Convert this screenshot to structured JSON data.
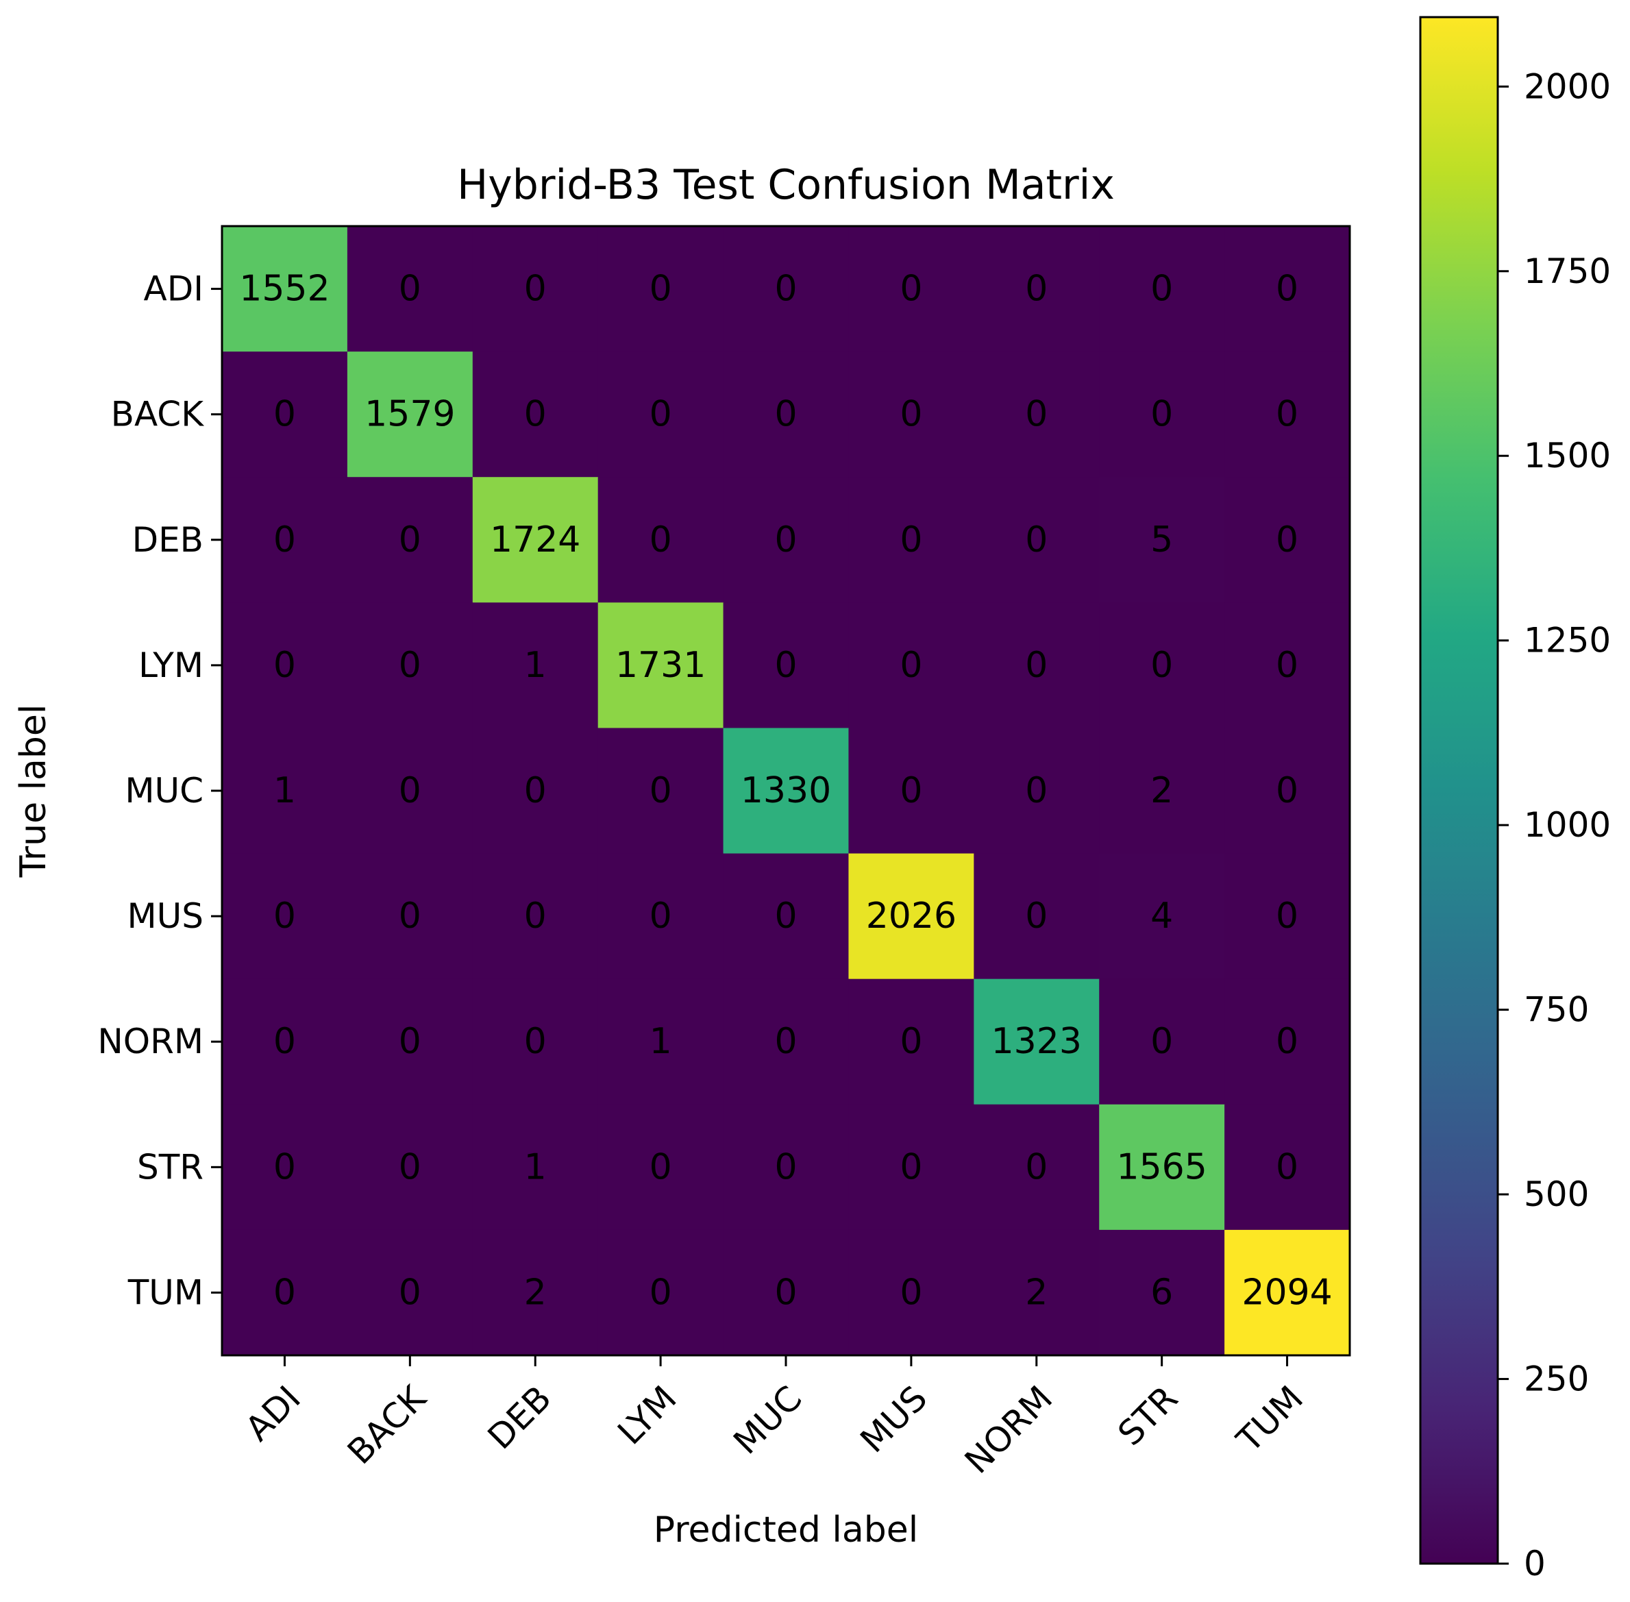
{
  "chart_data": {
    "type": "heatmap",
    "title": "Hybrid-B3 Test Confusion Matrix",
    "xlabel": "Predicted label",
    "ylabel": "True label",
    "x_categories": [
      "ADI",
      "BACK",
      "DEB",
      "LYM",
      "MUC",
      "MUS",
      "NORM",
      "STR",
      "TUM"
    ],
    "y_categories": [
      "ADI",
      "BACK",
      "DEB",
      "LYM",
      "MUC",
      "MUS",
      "NORM",
      "STR",
      "TUM"
    ],
    "values": [
      [
        1552,
        0,
        0,
        0,
        0,
        0,
        0,
        0,
        0
      ],
      [
        0,
        1579,
        0,
        0,
        0,
        0,
        0,
        0,
        0
      ],
      [
        0,
        0,
        1724,
        0,
        0,
        0,
        0,
        5,
        0
      ],
      [
        0,
        0,
        1,
        1731,
        0,
        0,
        0,
        0,
        0
      ],
      [
        1,
        0,
        0,
        0,
        1330,
        0,
        0,
        2,
        0
      ],
      [
        0,
        0,
        0,
        0,
        0,
        2026,
        0,
        4,
        0
      ],
      [
        0,
        0,
        0,
        1,
        0,
        0,
        1323,
        0,
        0
      ],
      [
        0,
        0,
        1,
        0,
        0,
        0,
        0,
        1565,
        0
      ],
      [
        0,
        0,
        2,
        0,
        0,
        0,
        2,
        6,
        2094
      ]
    ],
    "colormap": "viridis",
    "vmin": 0,
    "vmax": 2094,
    "colorbar_ticks": [
      0,
      250,
      500,
      750,
      1000,
      1250,
      1500,
      1750,
      2000
    ],
    "x_tick_rotation": 45,
    "grid": false
  }
}
